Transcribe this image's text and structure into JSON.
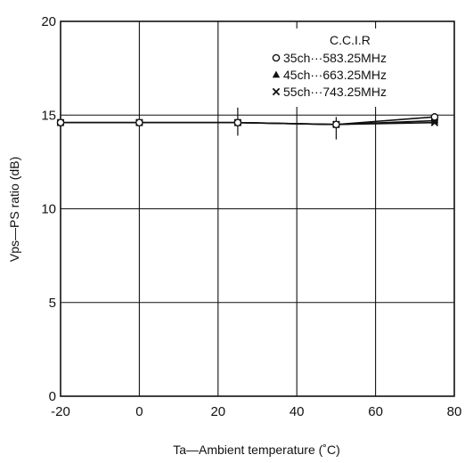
{
  "chart_data": {
    "type": "line",
    "xlabel": "Ta—Ambient temperature (˚C)",
    "ylabel": "Vps—PS ratio (dB)",
    "xlim": [
      -20,
      80
    ],
    "ylim": [
      0,
      20
    ],
    "x_ticks": [
      "-20",
      "0",
      "20",
      "40",
      "60",
      "80"
    ],
    "y_ticks": [
      "0",
      "5",
      "10",
      "15",
      "20"
    ],
    "grid": true,
    "legend_title": "C.C.I.R",
    "legend_position": "top-right",
    "series": [
      {
        "name": "35ch···583.25MHz",
        "marker": "circle",
        "x": [
          -20,
          0,
          25,
          50,
          75
        ],
        "y": [
          14.6,
          14.6,
          14.6,
          14.5,
          14.9
        ]
      },
      {
        "name": "45ch···663.25MHz",
        "marker": "triangle",
        "x": [
          -20,
          0,
          25,
          50,
          75
        ],
        "y": [
          14.6,
          14.6,
          14.6,
          14.5,
          14.7
        ]
      },
      {
        "name": "55ch···743.25MHz",
        "marker": "cross",
        "x": [
          -20,
          0,
          25,
          50,
          75
        ],
        "y": [
          14.6,
          14.6,
          14.6,
          14.5,
          14.6
        ]
      }
    ],
    "error_bars": [
      {
        "x": 25,
        "low": 13.9,
        "high": 15.4
      },
      {
        "x": 50,
        "low": 13.7,
        "high": 14.9
      }
    ]
  }
}
